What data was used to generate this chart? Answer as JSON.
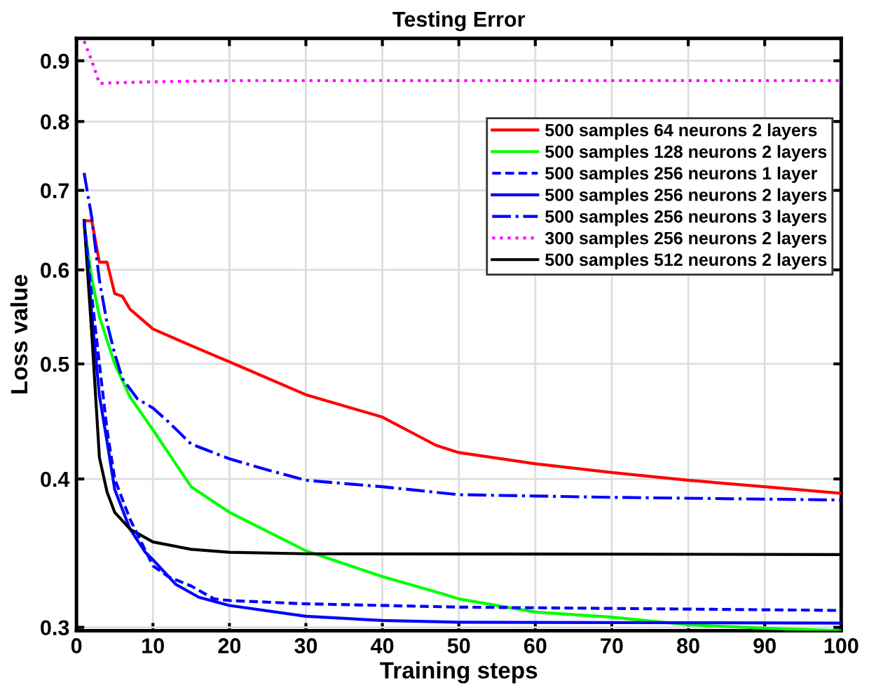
{
  "chart_data": {
    "type": "line",
    "title": "Testing Error",
    "xlabel": "Training steps",
    "ylabel": "Loss value",
    "log": "y",
    "xlim": [
      0,
      100
    ],
    "xticks": [
      0,
      10,
      20,
      30,
      40,
      50,
      60,
      70,
      80,
      90,
      100
    ],
    "ylim": [
      0.298,
      0.94
    ],
    "yticks": [
      0.3,
      0.4,
      0.5,
      0.6,
      0.7,
      0.8,
      0.9
    ],
    "grid": true,
    "legend": "top right",
    "series": [
      {
        "name": "500 samples 64 neurons 2 layers",
        "color": "#ff0000",
        "line_style": "solid",
        "x": [
          1,
          2,
          3,
          4,
          5,
          6,
          7,
          10,
          15,
          20,
          30,
          40,
          47,
          50,
          60,
          70,
          80,
          90,
          100
        ],
        "values": [
          0.66,
          0.66,
          0.609,
          0.609,
          0.573,
          0.57,
          0.556,
          0.535,
          0.518,
          0.502,
          0.471,
          0.451,
          0.427,
          0.421,
          0.412,
          0.405,
          0.399,
          0.394,
          0.389
        ]
      },
      {
        "name": "500 samples 128 neurons 2 layers",
        "color": "#00ff00",
        "line_style": "solid",
        "x": [
          1,
          2,
          3,
          5,
          7,
          10,
          15,
          20,
          30,
          40,
          48,
          50,
          60,
          70,
          80,
          90,
          100
        ],
        "values": [
          0.655,
          0.59,
          0.548,
          0.5,
          0.469,
          0.44,
          0.394,
          0.375,
          0.348,
          0.331,
          0.32,
          0.317,
          0.309,
          0.306,
          0.3015,
          0.2995,
          0.298
        ]
      },
      {
        "name": "500 samples 256 neurons 1 layer",
        "color": "#0000ff",
        "line_style": "dashed",
        "x": [
          1,
          2,
          3,
          4,
          5,
          7,
          10,
          12,
          15,
          18,
          20,
          30,
          50,
          100
        ],
        "values": [
          0.66,
          0.57,
          0.5,
          0.44,
          0.4,
          0.37,
          0.338,
          0.331,
          0.325,
          0.317,
          0.316,
          0.314,
          0.312,
          0.31
        ]
      },
      {
        "name": "500 samples 256 neurons 2 layers",
        "color": "#0000ff",
        "line_style": "solid",
        "x": [
          1,
          2,
          3,
          4,
          5,
          7,
          9,
          10,
          13,
          16,
          20,
          30,
          40,
          50,
          100
        ],
        "values": [
          0.66,
          0.55,
          0.47,
          0.43,
          0.392,
          0.363,
          0.347,
          0.342,
          0.326,
          0.318,
          0.313,
          0.3065,
          0.304,
          0.303,
          0.3025
        ]
      },
      {
        "name": "500 samples 256 neurons 3 layers",
        "color": "#0000ff",
        "line_style": "dashdot",
        "x": [
          1,
          2,
          3,
          4,
          5,
          6,
          8,
          10,
          12,
          15,
          20,
          25,
          30,
          40,
          50,
          70,
          100
        ],
        "values": [
          0.724,
          0.664,
          0.588,
          0.541,
          0.51,
          0.486,
          0.467,
          0.459,
          0.447,
          0.428,
          0.416,
          0.407,
          0.399,
          0.394,
          0.388,
          0.386,
          0.384
        ]
      },
      {
        "name": "300 samples 256 neurons 2 layers",
        "color": "#ff00ff",
        "line_style": "dotted",
        "x": [
          1,
          2,
          3,
          4,
          10,
          20,
          100
        ],
        "values": [
          0.935,
          0.9,
          0.861,
          0.862,
          0.864,
          0.866,
          0.866
        ]
      },
      {
        "name": "500 samples 512 neurons 2 layers",
        "color": "#000000",
        "line_style": "solid",
        "x": [
          1,
          2,
          3,
          4,
          5,
          7,
          10,
          15,
          20,
          30,
          100
        ],
        "values": [
          0.66,
          0.53,
          0.417,
          0.39,
          0.375,
          0.363,
          0.354,
          0.349,
          0.347,
          0.346,
          0.3455
        ]
      }
    ]
  }
}
